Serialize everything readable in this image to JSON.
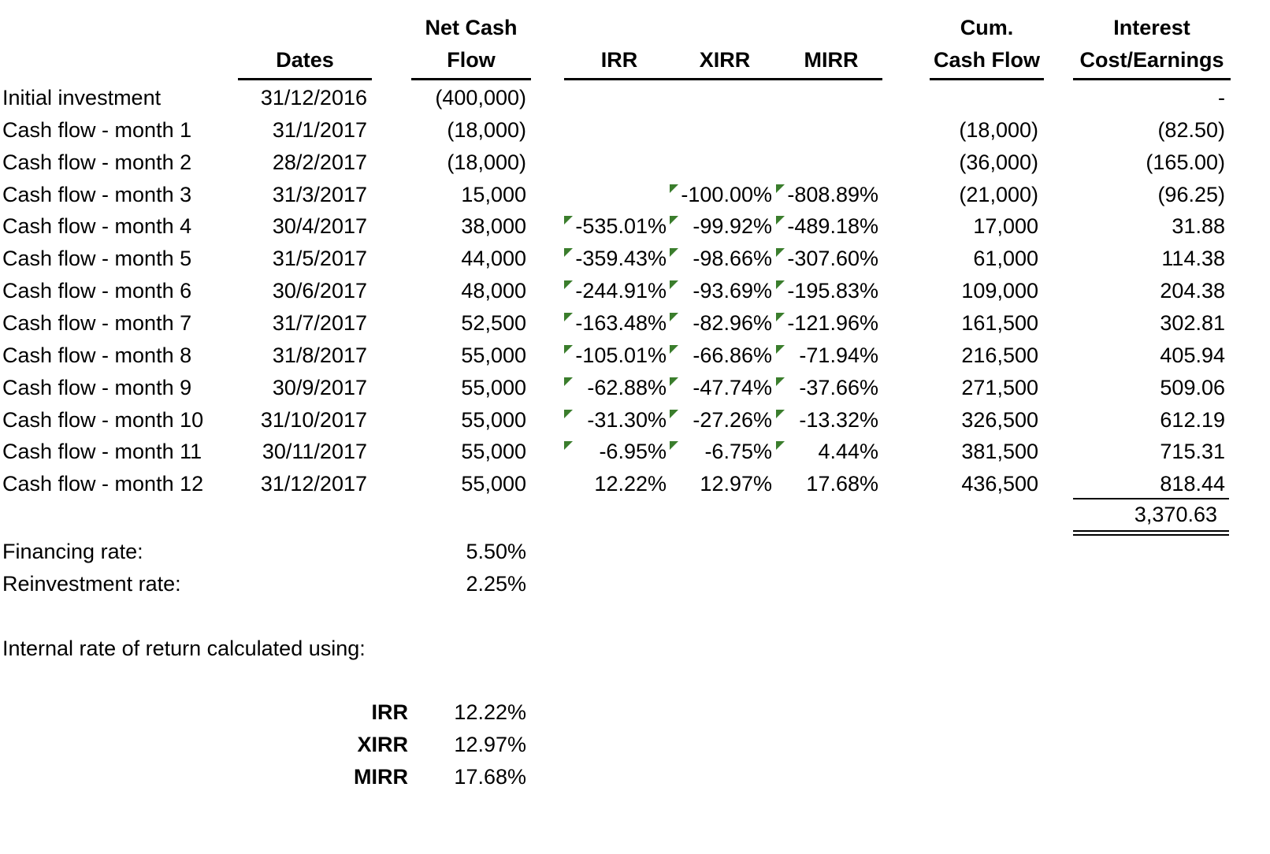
{
  "headers": {
    "dates": "Dates",
    "net_cash_flow_1": "Net Cash",
    "net_cash_flow_2": "Flow",
    "irr": "IRR",
    "xirr": "XIRR",
    "mirr": "MIRR",
    "cum_1": "Cum.",
    "cum_2": "Cash Flow",
    "interest_1": "Interest",
    "interest_2": "Cost/Earnings"
  },
  "rows": [
    {
      "label": "Initial investment",
      "date": "31/12/2016",
      "ncf": "(400,000)",
      "irr": "",
      "xirr": "",
      "mirr": "",
      "cum": "",
      "interest": "-"
    },
    {
      "label": "Cash flow - month 1",
      "date": "31/1/2017",
      "ncf": "(18,000)",
      "irr": "",
      "xirr": "",
      "mirr": "",
      "cum": "(18,000)",
      "interest": "(82.50)"
    },
    {
      "label": "Cash flow - month 2",
      "date": "28/2/2017",
      "ncf": "(18,000)",
      "irr": "",
      "xirr": "",
      "mirr": "",
      "cum": "(36,000)",
      "interest": "(165.00)"
    },
    {
      "label": "Cash flow - month 3",
      "date": "31/3/2017",
      "ncf": "15,000",
      "irr": "",
      "xirr": "-100.00%",
      "mirr": "-808.89%",
      "cum": "(21,000)",
      "interest": "(96.25)"
    },
    {
      "label": "Cash flow - month 4",
      "date": "30/4/2017",
      "ncf": "38,000",
      "irr": "-535.01%",
      "xirr": "-99.92%",
      "mirr": "-489.18%",
      "cum": "17,000",
      "interest": "31.88"
    },
    {
      "label": "Cash flow - month 5",
      "date": "31/5/2017",
      "ncf": "44,000",
      "irr": "-359.43%",
      "xirr": "-98.66%",
      "mirr": "-307.60%",
      "cum": "61,000",
      "interest": "114.38"
    },
    {
      "label": "Cash flow - month 6",
      "date": "30/6/2017",
      "ncf": "48,000",
      "irr": "-244.91%",
      "xirr": "-93.69%",
      "mirr": "-195.83%",
      "cum": "109,000",
      "interest": "204.38"
    },
    {
      "label": "Cash flow - month 7",
      "date": "31/7/2017",
      "ncf": "52,500",
      "irr": "-163.48%",
      "xirr": "-82.96%",
      "mirr": "-121.96%",
      "cum": "161,500",
      "interest": "302.81"
    },
    {
      "label": "Cash flow - month 8",
      "date": "31/8/2017",
      "ncf": "55,000",
      "irr": "-105.01%",
      "xirr": "-66.86%",
      "mirr": "-71.94%",
      "cum": "216,500",
      "interest": "405.94"
    },
    {
      "label": "Cash flow - month 9",
      "date": "30/9/2017",
      "ncf": "55,000",
      "irr": "-62.88%",
      "xirr": "-47.74%",
      "mirr": "-37.66%",
      "cum": "271,500",
      "interest": "509.06"
    },
    {
      "label": "Cash flow - month 10",
      "date": "31/10/2017",
      "ncf": "55,000",
      "irr": "-31.30%",
      "xirr": "-27.26%",
      "mirr": "-13.32%",
      "cum": "326,500",
      "interest": "612.19"
    },
    {
      "label": "Cash flow - month 11",
      "date": "30/11/2017",
      "ncf": "55,000",
      "irr": "-6.95%",
      "xirr": "-6.75%",
      "mirr": "4.44%",
      "cum": "381,500",
      "interest": "715.31"
    },
    {
      "label": "Cash flow - month 12",
      "date": "31/12/2017",
      "ncf": "55,000",
      "irr": "12.22%",
      "xirr": "12.97%",
      "mirr": "17.68%",
      "cum": "436,500",
      "interest": "818.44"
    }
  ],
  "interest_total": "3,370.63",
  "rates": {
    "financing_label": "Financing rate:",
    "financing_value": "5.50%",
    "reinvestment_label": "Reinvestment rate:",
    "reinvestment_value": "2.25%"
  },
  "summary": {
    "title": "Internal rate of return calculated using:",
    "items": [
      {
        "label": "IRR",
        "value": "12.22%"
      },
      {
        "label": "XIRR",
        "value": "12.97%"
      },
      {
        "label": "MIRR",
        "value": "17.68%"
      }
    ]
  },
  "indicator_color": "#3a7d2c"
}
